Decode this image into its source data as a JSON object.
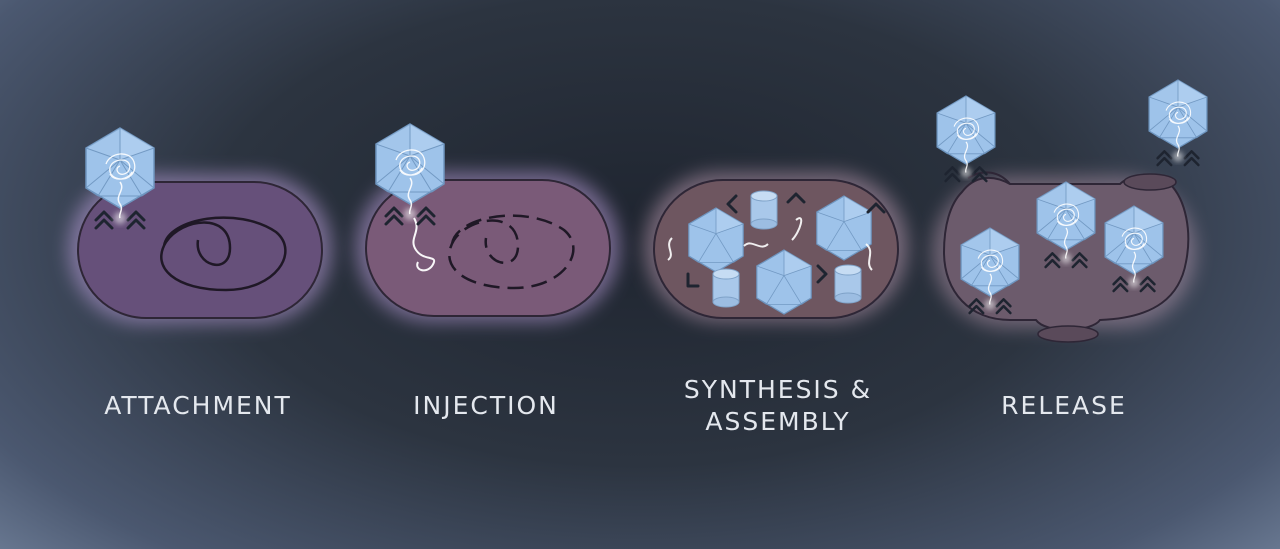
{
  "stages": [
    {
      "id": "attachment",
      "lines": [
        "ATTACHMENT"
      ]
    },
    {
      "id": "injection",
      "lines": [
        "INJECTION"
      ]
    },
    {
      "id": "synthesis",
      "lines": [
        "SYNTHESIS &",
        "ASSEMBLY"
      ]
    },
    {
      "id": "release",
      "lines": [
        "RELEASE"
      ]
    }
  ],
  "colors": {
    "cell_attachment": "#66507a",
    "cell_injection": "#7a5a78",
    "cell_synthesis": "#6e5660",
    "cell_release": "#6c5b6c",
    "capsid": "#9ec3ea",
    "glow": "#c8a8e8"
  }
}
